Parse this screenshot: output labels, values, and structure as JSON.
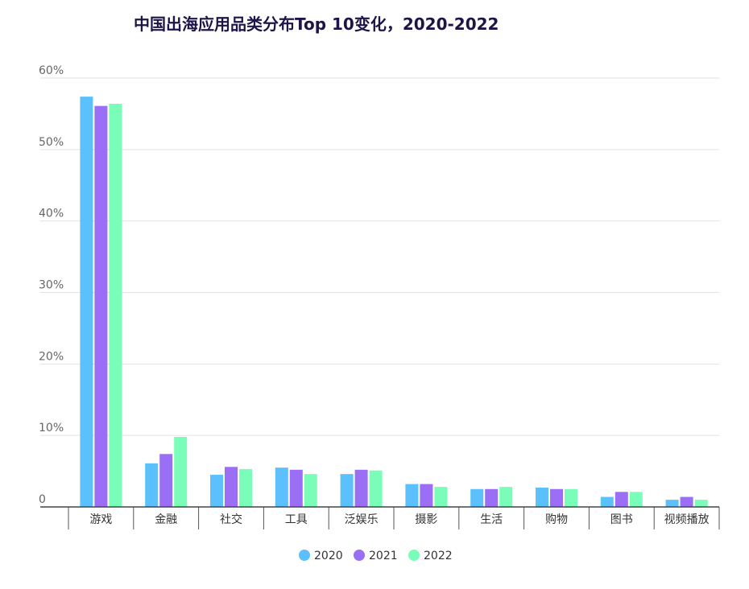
{
  "chart_data": {
    "type": "bar",
    "title": "中国出海应用品类分布Top 10变化，2020-2022",
    "xlabel": "",
    "ylabel": "",
    "ylim": [
      0,
      60
    ],
    "yticks": [
      "0",
      "10%",
      "20%",
      "30%",
      "40%",
      "50%",
      "60%"
    ],
    "grid": true,
    "legend_position": "bottom",
    "categories": [
      "游戏",
      "金融",
      "社交",
      "工具",
      "泛娱乐",
      "摄影",
      "生活",
      "购物",
      "图书",
      "视频播放"
    ],
    "series": [
      {
        "name": "2020",
        "color": "#5BC0FB",
        "values": [
          57.4,
          6.1,
          4.5,
          5.5,
          4.6,
          3.2,
          2.5,
          2.7,
          1.4,
          1.0
        ]
      },
      {
        "name": "2021",
        "color": "#9B6FF5",
        "values": [
          56.1,
          7.4,
          5.6,
          5.2,
          5.2,
          3.2,
          2.5,
          2.5,
          2.1,
          1.4
        ]
      },
      {
        "name": "2022",
        "color": "#7AFDB9",
        "values": [
          56.4,
          9.8,
          5.3,
          4.6,
          5.1,
          2.8,
          2.8,
          2.5,
          2.1,
          1.0
        ]
      }
    ]
  }
}
